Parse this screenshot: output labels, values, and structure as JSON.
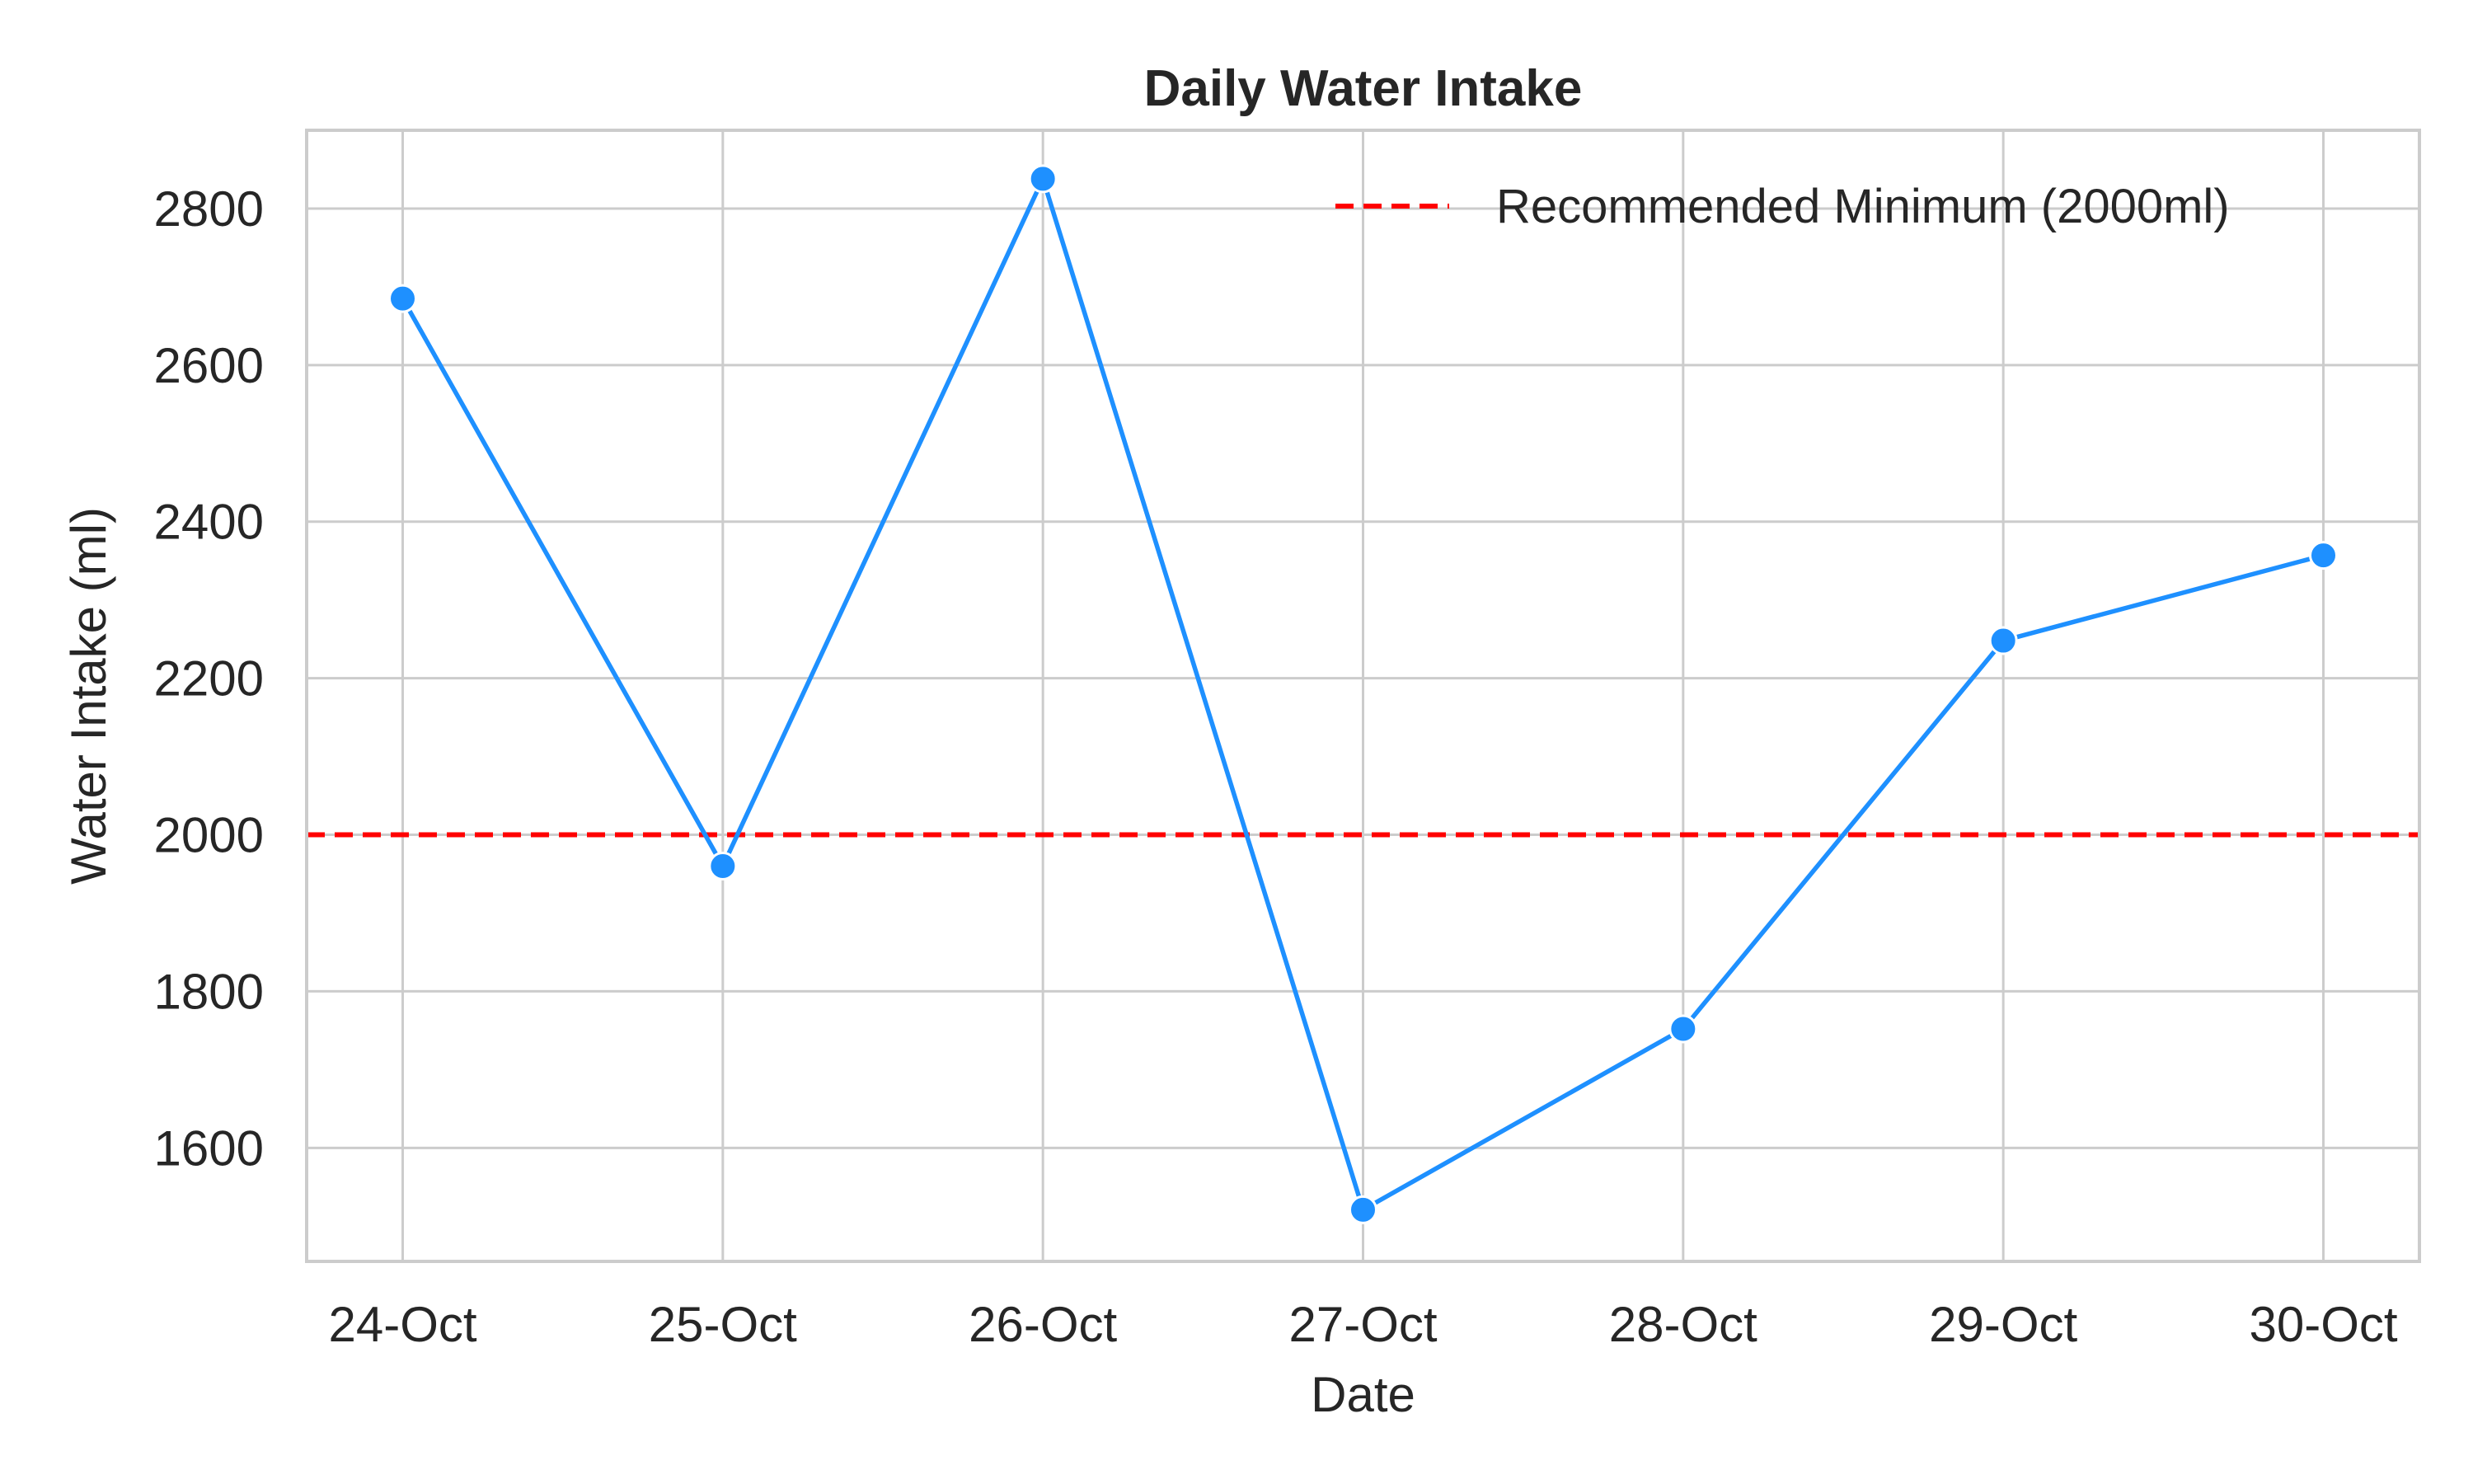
{
  "chart_data": {
    "type": "line",
    "title": "Daily Water Intake",
    "xlabel": "Date",
    "ylabel": "Water Intake (ml)",
    "categories": [
      "24-Oct",
      "25-Oct",
      "26-Oct",
      "27-Oct",
      "28-Oct",
      "29-Oct",
      "30-Oct"
    ],
    "series": [
      {
        "values": [
          2685,
          1960,
          2838,
          1521,
          1752,
          2248,
          2357
        ],
        "color": "#1e90ff"
      }
    ],
    "reference_line": {
      "label": "Recommended Minimum (2000ml)",
      "value": 2000,
      "color": "#ff0000",
      "style": "dashed"
    },
    "yticks": [
      1600,
      1800,
      2000,
      2200,
      2400,
      2600,
      2800
    ],
    "ylim": [
      1455,
      2900
    ],
    "grid": true,
    "legend_position": "upper right"
  }
}
